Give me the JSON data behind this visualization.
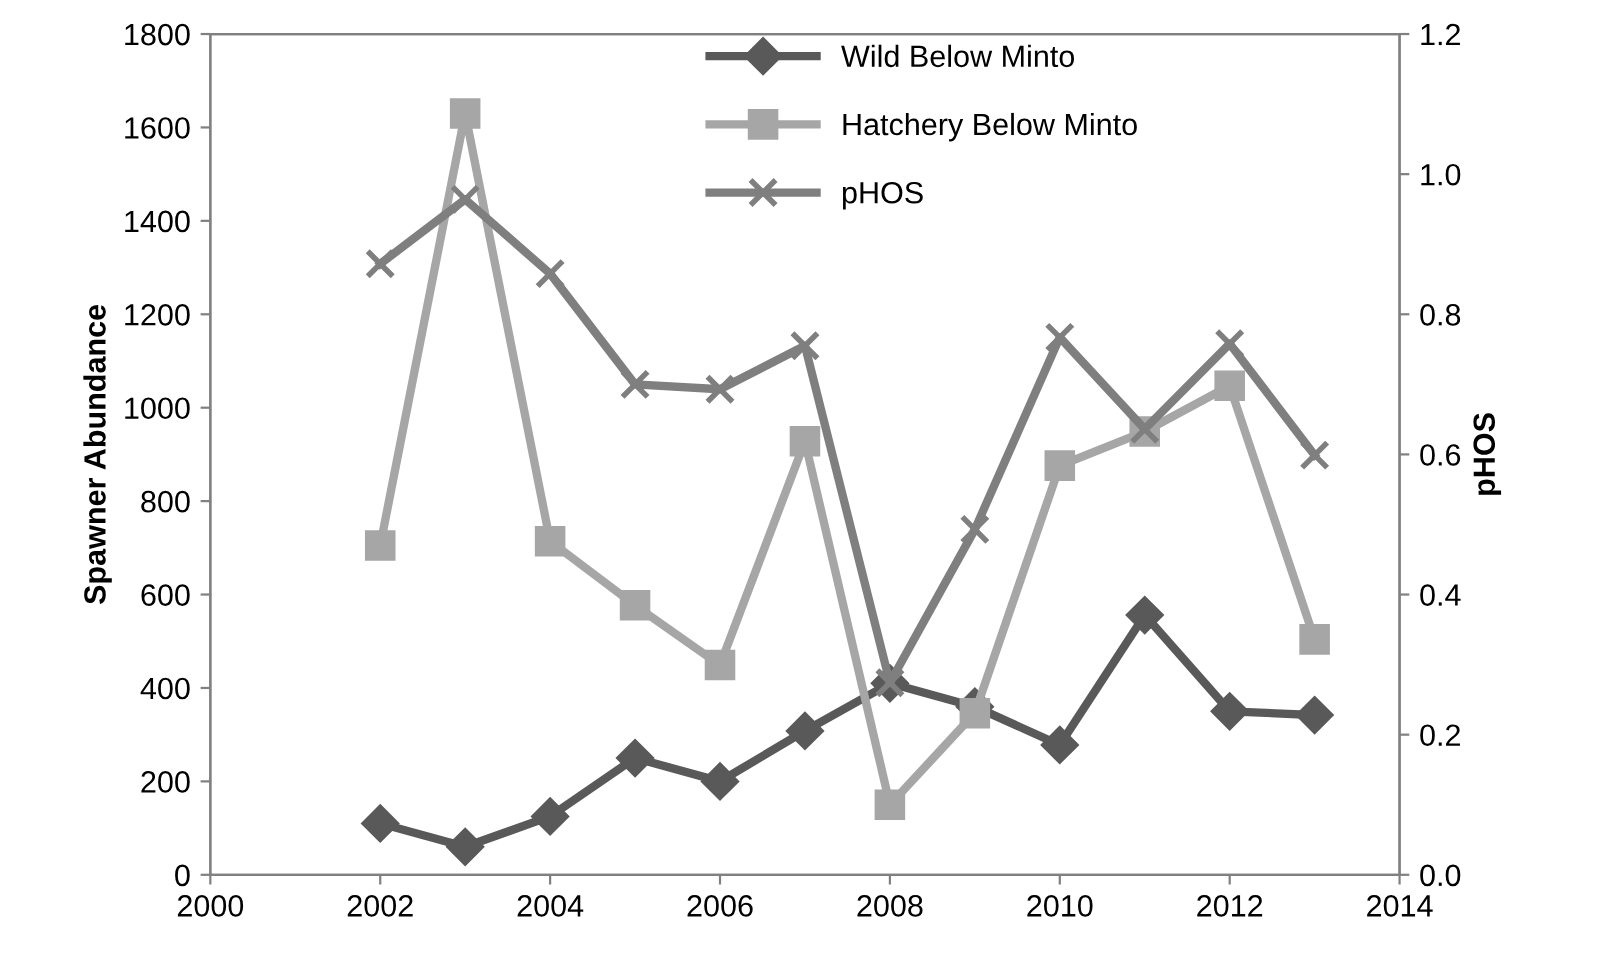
{
  "chart_data": {
    "type": "line",
    "ylabel": "Spawner Abundance",
    "y2label": "pHOS",
    "x": [
      2002,
      2003,
      2004,
      2005,
      2006,
      2007,
      2008,
      2009,
      2010,
      2011,
      2012,
      2013
    ],
    "xlim": [
      2000,
      2014
    ],
    "xticks": [
      2000,
      2002,
      2004,
      2006,
      2008,
      2010,
      2012,
      2014
    ],
    "ylim": [
      0,
      1800
    ],
    "yticks": [
      0,
      200,
      400,
      600,
      800,
      1000,
      1200,
      1400,
      1600,
      1800
    ],
    "y2lim": [
      0,
      1.2
    ],
    "y2ticks": [
      {
        "value": 0,
        "label": "0.0"
      },
      {
        "value": 0.2,
        "label": "0.2"
      },
      {
        "value": 0.4,
        "label": "0.4"
      },
      {
        "value": 0.6,
        "label": "0.6"
      },
      {
        "value": 0.8,
        "label": "0.8"
      },
      {
        "value": 1.0,
        "label": "1.0"
      },
      {
        "value": 1.2,
        "label": "1.2"
      }
    ],
    "grid": false,
    "legend": "top",
    "series": [
      {
        "name": "Wild Below Minto",
        "color": "#595959",
        "marker": "diamond",
        "values": [
          110,
          60,
          125,
          250,
          200,
          308,
          410,
          360,
          278,
          556,
          350,
          342
        ]
      },
      {
        "name": "Hatchery Below Minto",
        "color": "#a6a6a6",
        "marker": "square",
        "values": [
          705,
          1630,
          714,
          577,
          449,
          928,
          150,
          346,
          876,
          949,
          1047,
          504
        ]
      },
      {
        "name": "pHOS",
        "color": "#7f7f7f",
        "marker": "cross",
        "axis": "y2",
        "values": [
          0.872,
          0.964,
          0.858,
          0.7,
          0.693,
          0.755,
          0.274,
          0.493,
          0.767,
          0.636,
          0.758,
          0.599
        ]
      }
    ]
  }
}
